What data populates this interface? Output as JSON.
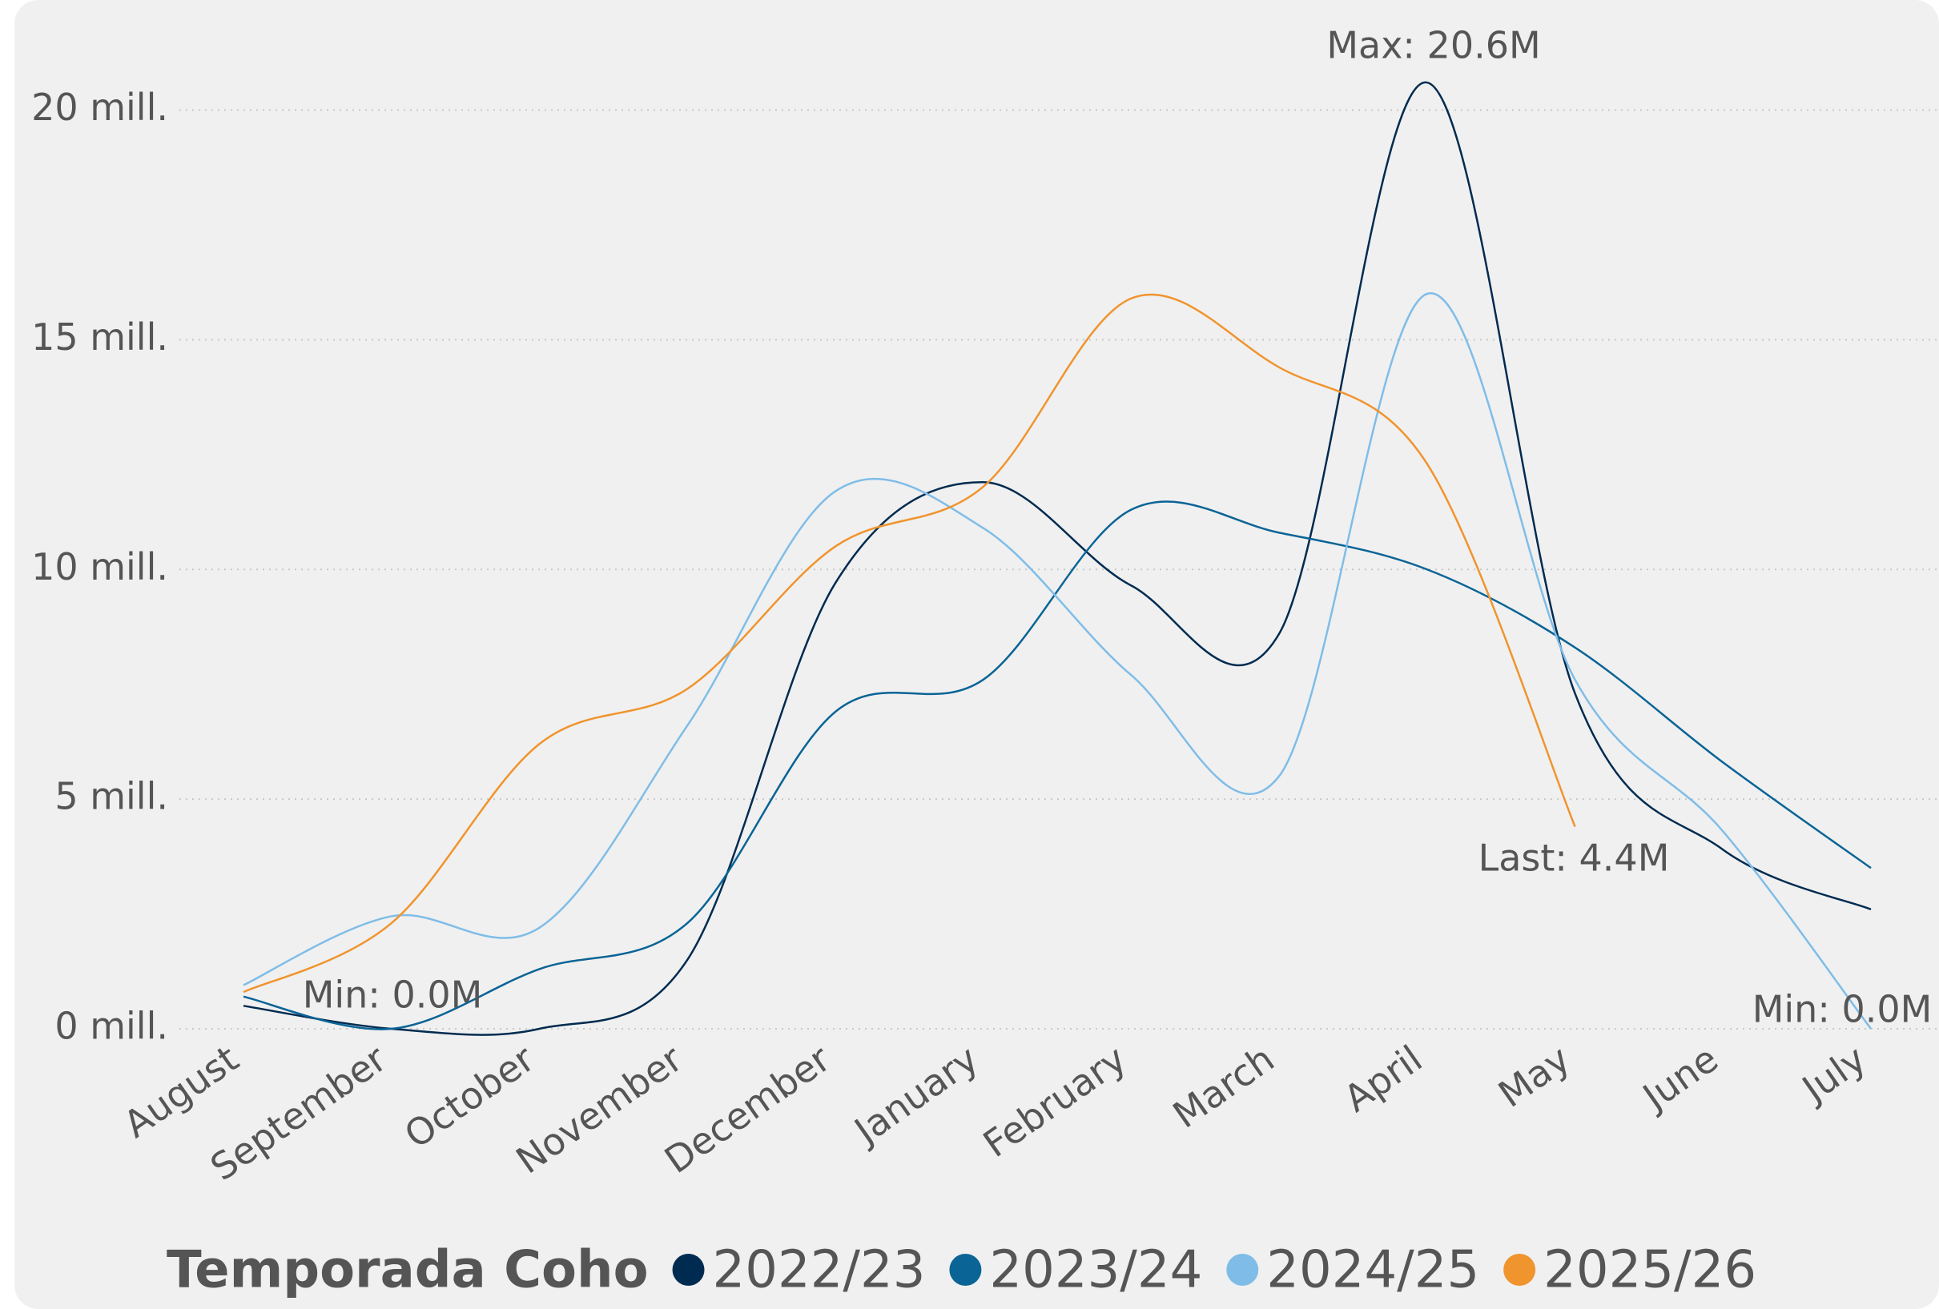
{
  "chart_data": {
    "type": "line",
    "categories": [
      "August",
      "September",
      "October",
      "November",
      "December",
      "January",
      "February",
      "March",
      "April",
      "May",
      "June",
      "July"
    ],
    "series": [
      {
        "name": "2022/23",
        "color": "#002b50",
        "values": [
          0.5,
          0,
          0,
          1.5,
          9.7,
          11.9,
          9.65,
          8.6,
          20.6,
          7.3,
          3.9,
          2.6
        ]
      },
      {
        "name": "2023/24",
        "color": "#0a6496",
        "values": [
          0.7,
          0,
          1.3,
          2.3,
          6.9,
          7.6,
          11.3,
          10.8,
          10.0,
          8.3,
          5.8,
          3.5
        ]
      },
      {
        "name": "2024/25",
        "color": "#7fbde8",
        "values": [
          0.95,
          2.45,
          2.2,
          6.6,
          11.7,
          10.9,
          7.7,
          5.5,
          16.0,
          7.6,
          4.3,
          0.0
        ]
      },
      {
        "name": "2025/26",
        "color": "#f0942d",
        "values": [
          0.8,
          2.3,
          6.2,
          7.4,
          10.5,
          11.8,
          15.9,
          14.4,
          12.3,
          4.4,
          null,
          null
        ]
      }
    ],
    "ylim": [
      0,
      20
    ],
    "yticks": [
      {
        "value": 0,
        "label": "0 mill."
      },
      {
        "value": 5,
        "label": "5 mill."
      },
      {
        "value": 10,
        "label": "10 mill."
      },
      {
        "value": 15,
        "label": "15 mill."
      },
      {
        "value": 20,
        "label": "20 mill."
      }
    ],
    "grid": true,
    "legend_title": "Temporada Coho",
    "annotations": [
      "Max: 20.6M",
      "Min: 0.0M",
      "Last: 4.4M",
      "Min: 0.0M"
    ]
  }
}
